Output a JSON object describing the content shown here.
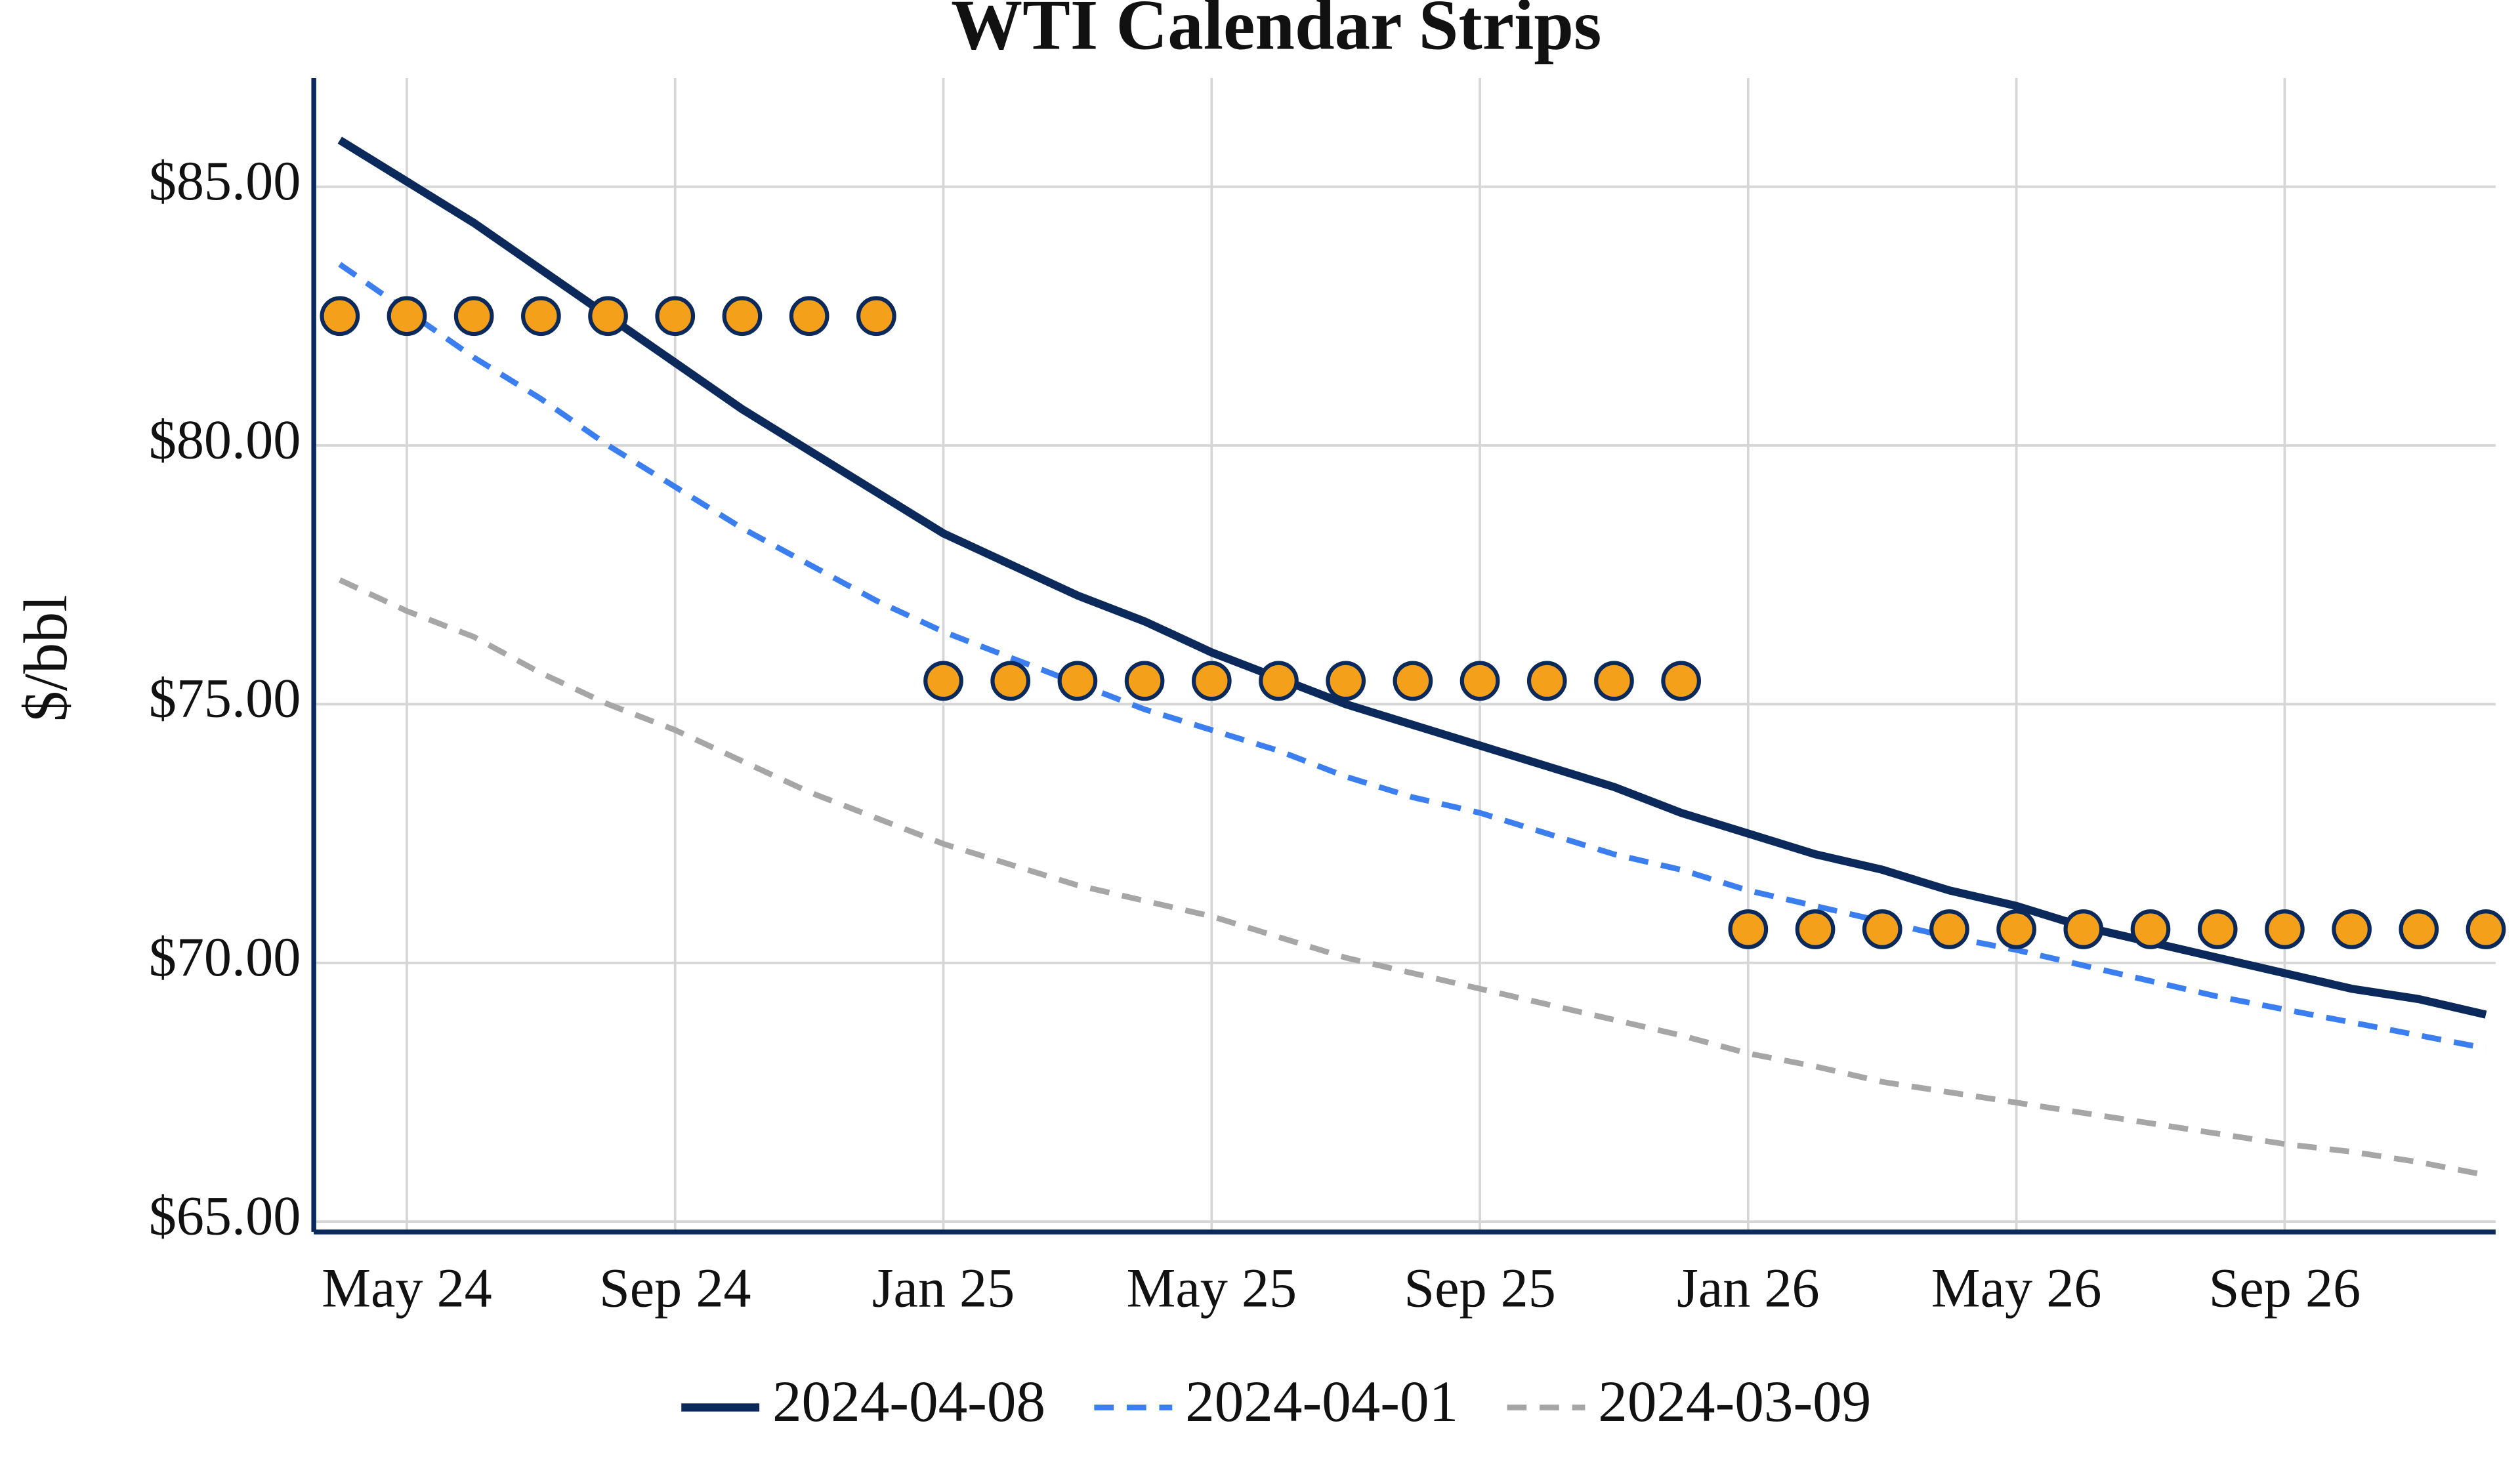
{
  "chart_data": {
    "type": "line",
    "title": "WTI Calendar Strips",
    "y_label": "$/bbl",
    "x": [
      "2024-04",
      "2024-05",
      "2024-06",
      "2024-07",
      "2024-08",
      "2024-09",
      "2024-10",
      "2024-11",
      "2024-12",
      "2025-01",
      "2025-02",
      "2025-03",
      "2025-04",
      "2025-05",
      "2025-06",
      "2025-07",
      "2025-08",
      "2025-09",
      "2025-10",
      "2025-11",
      "2025-12",
      "2026-01",
      "2026-02",
      "2026-03",
      "2026-04",
      "2026-05",
      "2026-06",
      "2026-07",
      "2026-08",
      "2026-09",
      "2026-10",
      "2026-11",
      "2026-12"
    ],
    "series": [
      {
        "name": "2024-04-08",
        "color": "#0b2a5b",
        "dash": "solid",
        "values": [
          85.9,
          85.1,
          84.3,
          83.4,
          82.5,
          81.6,
          80.7,
          79.9,
          79.1,
          78.3,
          77.7,
          77.1,
          76.6,
          76.0,
          75.5,
          75.0,
          74.6,
          74.2,
          73.8,
          73.4,
          72.9,
          72.5,
          72.1,
          71.8,
          71.4,
          71.1,
          70.7,
          70.4,
          70.1,
          69.8,
          69.5,
          69.3,
          69.0
        ]
      },
      {
        "name": "2024-04-01",
        "color": "#3a7ef0",
        "dash": "dashed",
        "values": [
          83.5,
          82.6,
          81.7,
          80.9,
          80.0,
          79.2,
          78.4,
          77.7,
          77.0,
          76.4,
          75.9,
          75.4,
          74.9,
          74.5,
          74.1,
          73.6,
          73.2,
          72.9,
          72.5,
          72.1,
          71.8,
          71.4,
          71.1,
          70.8,
          70.5,
          70.25,
          69.95,
          69.65,
          69.35,
          69.1,
          68.85,
          68.6,
          68.35
        ]
      },
      {
        "name": "2024-03-09",
        "color": "#a6a6a6",
        "dash": "dashed",
        "values": [
          77.4,
          76.8,
          76.3,
          75.6,
          75.0,
          74.5,
          73.9,
          73.3,
          72.8,
          72.3,
          71.9,
          71.5,
          71.2,
          70.9,
          70.5,
          70.1,
          69.8,
          69.5,
          69.2,
          68.9,
          68.6,
          68.25,
          68.0,
          67.7,
          67.5,
          67.3,
          67.1,
          66.9,
          66.7,
          66.5,
          66.35,
          66.15,
          65.9
        ]
      }
    ],
    "strips": {
      "color": "#f5a01a",
      "edge_color": "#0b2a5b",
      "values": [
        82.5,
        82.5,
        82.5,
        82.5,
        82.5,
        82.5,
        82.5,
        82.5,
        82.5,
        75.45,
        75.45,
        75.45,
        75.45,
        75.45,
        75.45,
        75.45,
        75.45,
        75.45,
        75.45,
        75.45,
        75.45,
        70.65,
        70.65,
        70.65,
        70.65,
        70.65,
        70.65,
        70.65,
        70.65,
        70.65,
        70.65,
        70.65,
        70.65
      ]
    },
    "xlim": [
      "2024-04",
      "2026-12"
    ],
    "xticks": [
      {
        "value": "2024-05",
        "label": "May 24"
      },
      {
        "value": "2024-09",
        "label": "Sep 24"
      },
      {
        "value": "2025-01",
        "label": "Jan 25"
      },
      {
        "value": "2025-05",
        "label": "May 25"
      },
      {
        "value": "2025-09",
        "label": "Sep 25"
      },
      {
        "value": "2026-01",
        "label": "Jan 26"
      },
      {
        "value": "2026-05",
        "label": "May 26"
      },
      {
        "value": "2026-09",
        "label": "Sep 26"
      }
    ],
    "ylim": [
      64.8,
      87.1
    ],
    "yticks": [
      {
        "value": 65,
        "label": "$65.00"
      },
      {
        "value": 70,
        "label": "$70.00"
      },
      {
        "value": 75,
        "label": "$75.00"
      },
      {
        "value": 80,
        "label": "$80.00"
      },
      {
        "value": 85,
        "label": "$85.00"
      }
    ],
    "grid": true,
    "legend": "bottom"
  }
}
